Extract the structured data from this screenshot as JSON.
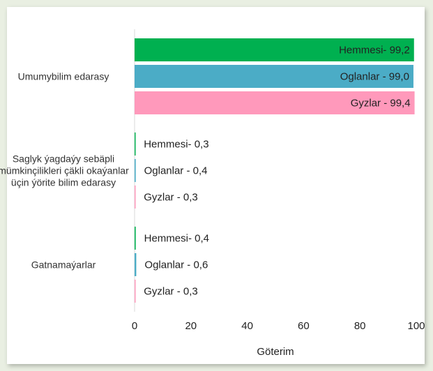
{
  "chart_data": {
    "type": "bar",
    "orientation": "horizontal",
    "categories": [
      "Umumybilim edarasy",
      "Saglyk ýagdaýy sebäpli mümkinçilikleri çäkli okaýanlar üçin ýörite bilim edarasy",
      "Gatnamaýarlar"
    ],
    "series": [
      {
        "name": "Hemmesi",
        "color": "#00b050",
        "values": [
          99.2,
          0.3,
          0.4
        ],
        "value_labels": [
          "Hemmesi- 99,2",
          "Hemmesi- 0,3",
          "Hemmesi- 0,4"
        ]
      },
      {
        "name": "Oglanlar",
        "color": "#4bacc6",
        "values": [
          99.0,
          0.4,
          0.6
        ],
        "value_labels": [
          "Oglanlar - 99,0",
          "Oglanlar - 0,4",
          "Oglanlar - 0,6"
        ]
      },
      {
        "name": "Gyzlar",
        "color": "#ff99bb",
        "values": [
          99.4,
          0.3,
          0.3
        ],
        "value_labels": [
          "Gyzlar - 99,4",
          "Gyzlar - 0,3",
          "Gyzlar - 0,3"
        ]
      }
    ],
    "x_label": "Göterim",
    "xlim": [
      0,
      100
    ],
    "xticks": [
      0,
      20,
      40,
      60,
      80,
      100
    ]
  }
}
